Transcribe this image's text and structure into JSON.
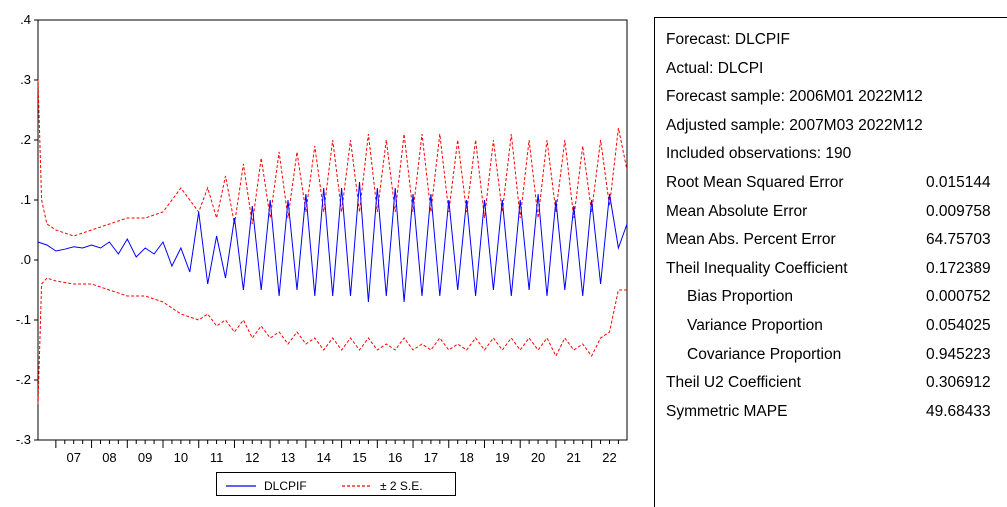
{
  "chart_data": {
    "type": "line",
    "xlim": [
      2006.5,
      2022.99
    ],
    "ylim": [
      -0.3,
      0.4
    ],
    "yticks": [
      ".4",
      ".3",
      ".2",
      ".1",
      ".0",
      "-.1",
      "-.2",
      "-.3"
    ],
    "ytick_values": [
      0.4,
      0.3,
      0.2,
      0.1,
      0.0,
      -0.1,
      -0.2,
      -0.3
    ],
    "xticks": [
      "07",
      "08",
      "09",
      "10",
      "11",
      "12",
      "13",
      "14",
      "15",
      "16",
      "17",
      "18",
      "19",
      "20",
      "21",
      "22"
    ],
    "series": [
      {
        "name": "DLCPIF",
        "color": "#0000ff",
        "x": [
          2006.5,
          2006.75,
          2007,
          2007.25,
          2007.5,
          2007.75,
          2008,
          2008.25,
          2008.5,
          2008.75,
          2009,
          2009.25,
          2009.5,
          2009.75,
          2010,
          2010.25,
          2010.5,
          2010.75,
          2011,
          2011.25,
          2011.5,
          2011.75,
          2012,
          2012.25,
          2012.5,
          2012.75,
          2013,
          2013.25,
          2013.5,
          2013.75,
          2014,
          2014.25,
          2014.5,
          2014.75,
          2015,
          2015.25,
          2015.5,
          2015.75,
          2016,
          2016.25,
          2016.5,
          2016.75,
          2017,
          2017.25,
          2017.5,
          2017.75,
          2018,
          2018.25,
          2018.5,
          2018.75,
          2019,
          2019.25,
          2019.5,
          2019.75,
          2020,
          2020.25,
          2020.5,
          2020.75,
          2021,
          2021.25,
          2021.5,
          2021.75,
          2022,
          2022.25,
          2022.5,
          2022.75,
          2022.99
        ],
        "values": [
          0.03,
          0.025,
          0.015,
          0.018,
          0.022,
          0.02,
          0.025,
          0.02,
          0.03,
          0.01,
          0.035,
          0.005,
          0.02,
          0.01,
          0.03,
          -0.01,
          0.02,
          -0.02,
          0.08,
          -0.04,
          0.04,
          -0.03,
          0.07,
          -0.05,
          0.09,
          -0.05,
          0.1,
          -0.06,
          0.1,
          -0.05,
          0.11,
          -0.06,
          0.12,
          -0.06,
          0.12,
          -0.06,
          0.13,
          -0.07,
          0.12,
          -0.06,
          0.12,
          -0.07,
          0.11,
          -0.06,
          0.11,
          -0.06,
          0.1,
          -0.05,
          0.1,
          -0.06,
          0.1,
          -0.05,
          0.1,
          -0.06,
          0.1,
          -0.05,
          0.11,
          -0.06,
          0.1,
          -0.05,
          0.09,
          -0.06,
          0.1,
          -0.04,
          0.11,
          0.02,
          0.06
        ]
      },
      {
        "name": "± 2 S.E.",
        "color": "#ff0000",
        "x": [
          2006.5,
          2006.6,
          2006.75,
          2007,
          2007.5,
          2008,
          2008.5,
          2009,
          2009.5,
          2010,
          2010.5,
          2011,
          2011.25,
          2011.5,
          2011.75,
          2012,
          2012.25,
          2012.5,
          2012.75,
          2013,
          2013.25,
          2013.5,
          2013.75,
          2014,
          2014.25,
          2014.5,
          2014.75,
          2015,
          2015.25,
          2015.5,
          2015.75,
          2016,
          2016.25,
          2016.5,
          2016.75,
          2017,
          2017.25,
          2017.5,
          2017.75,
          2018,
          2018.25,
          2018.5,
          2018.75,
          2019,
          2019.25,
          2019.5,
          2019.75,
          2020,
          2020.25,
          2020.5,
          2020.75,
          2021,
          2021.25,
          2021.5,
          2021.75,
          2022,
          2022.25,
          2022.5,
          2022.75,
          2022.99
        ],
        "upper": [
          0.3,
          0.1,
          0.06,
          0.05,
          0.04,
          0.05,
          0.06,
          0.07,
          0.07,
          0.08,
          0.12,
          0.08,
          0.12,
          0.07,
          0.14,
          0.06,
          0.16,
          0.06,
          0.17,
          0.07,
          0.18,
          0.07,
          0.18,
          0.08,
          0.19,
          0.08,
          0.2,
          0.08,
          0.2,
          0.08,
          0.21,
          0.08,
          0.2,
          0.08,
          0.21,
          0.08,
          0.21,
          0.08,
          0.21,
          0.08,
          0.2,
          0.08,
          0.2,
          0.07,
          0.2,
          0.08,
          0.21,
          0.07,
          0.2,
          0.07,
          0.2,
          0.08,
          0.2,
          0.07,
          0.19,
          0.08,
          0.2,
          0.09,
          0.22,
          0.15
        ],
        "lower": [
          -0.24,
          -0.04,
          -0.03,
          -0.035,
          -0.04,
          -0.04,
          -0.05,
          -0.06,
          -0.06,
          -0.07,
          -0.09,
          -0.1,
          -0.09,
          -0.11,
          -0.1,
          -0.12,
          -0.1,
          -0.13,
          -0.11,
          -0.13,
          -0.12,
          -0.14,
          -0.12,
          -0.14,
          -0.13,
          -0.15,
          -0.13,
          -0.15,
          -0.13,
          -0.15,
          -0.13,
          -0.15,
          -0.14,
          -0.15,
          -0.13,
          -0.15,
          -0.14,
          -0.15,
          -0.13,
          -0.15,
          -0.14,
          -0.15,
          -0.13,
          -0.15,
          -0.13,
          -0.15,
          -0.13,
          -0.15,
          -0.13,
          -0.15,
          -0.13,
          -0.16,
          -0.13,
          -0.15,
          -0.14,
          -0.16,
          -0.13,
          -0.12,
          -0.05,
          -0.05
        ]
      }
    ]
  },
  "legend": {
    "items": [
      {
        "label": "DLCPIF",
        "color": "#0000ff",
        "style": "solid"
      },
      {
        "label": "± 2 S.E.",
        "color": "#ff0000",
        "style": "dashed"
      }
    ]
  },
  "stats": {
    "header": [
      "Forecast: DLCPIF",
      "Actual: DLCPI",
      "Forecast sample: 2006M01 2022M12",
      "Adjusted sample: 2007M03 2022M12",
      "Included observations: 190"
    ],
    "rows": [
      {
        "label": "Root Mean Squared Error",
        "value": "0.015144",
        "indent": false
      },
      {
        "label": "Mean Absolute Error",
        "value": "0.009758",
        "indent": false
      },
      {
        "label": "Mean Abs. Percent Error",
        "value": "64.75703",
        "indent": false
      },
      {
        "label": "Theil Inequality Coefficient",
        "value": "0.172389",
        "indent": false
      },
      {
        "label": "Bias Proportion",
        "value": "0.000752",
        "indent": true
      },
      {
        "label": "Variance Proportion",
        "value": "0.054025",
        "indent": true
      },
      {
        "label": "Covariance Proportion",
        "value": "0.945223",
        "indent": true
      },
      {
        "label": "Theil U2 Coefficient",
        "value": "0.306912",
        "indent": false
      },
      {
        "label": "Symmetric MAPE",
        "value": "49.68433",
        "indent": false
      }
    ]
  }
}
